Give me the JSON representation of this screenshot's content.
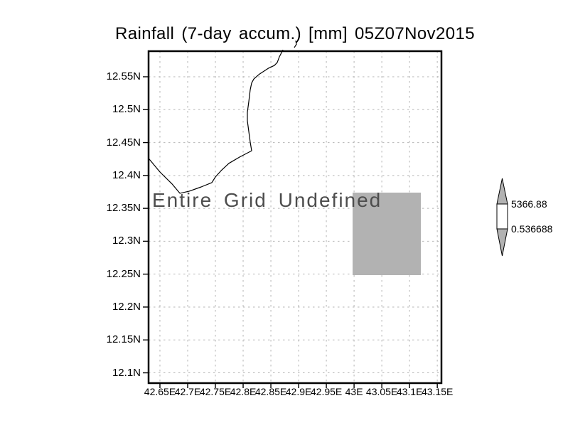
{
  "title": "Rainfall (7-day accum.) [mm] 05Z07Nov2015",
  "chart_data": {
    "type": "heatmap",
    "title": "Rainfall (7-day accum.) [mm] 05Z07Nov2015",
    "description_of_plot": "GrADS-style lat/lon map plot, entire grid undefined, one gray missing-data rectangle, coastline outline, vertical colorbar with pointed gray ends",
    "x_axis": {
      "labels": [
        "42.65E",
        "42.7E",
        "42.75E",
        "42.8E",
        "42.85E",
        "42.9E",
        "42.95E",
        "43E",
        "43.05E",
        "43.1E",
        "43.15E"
      ],
      "first_tick_frac": 0.0388,
      "tick_step_frac": 0.0947
    },
    "y_axis": {
      "labels": [
        "12.55N",
        "12.5N",
        "12.45N",
        "12.4N",
        "12.35N",
        "12.3N",
        "12.25N",
        "12.2N",
        "12.15N",
        "12.1N"
      ],
      "first_tick_frac": 0.0771,
      "tick_step_frac": 0.0991
    },
    "grid": "dotted",
    "annotation": {
      "text": "Entire Grid Undefined"
    },
    "colorbar": {
      "max_label": "5366.88",
      "min_label": "0.536688"
    },
    "undefined_region_frac": {
      "x0": 0.6966,
      "y0": 0.4261,
      "x1": 0.9296,
      "y1": 0.6745
    },
    "coastline_frac": [
      [
        0.459,
        -0.004
      ],
      [
        0.4466,
        0.017
      ],
      [
        0.4393,
        0.034
      ],
      [
        0.4296,
        0.043
      ],
      [
        0.4102,
        0.051
      ],
      [
        0.3786,
        0.069
      ],
      [
        0.3592,
        0.084
      ],
      [
        0.3519,
        0.096
      ],
      [
        0.3471,
        0.116
      ],
      [
        0.3422,
        0.152
      ],
      [
        0.3374,
        0.184
      ],
      [
        0.3374,
        0.21
      ],
      [
        0.3422,
        0.242
      ],
      [
        0.3471,
        0.274
      ],
      [
        0.3519,
        0.3
      ],
      [
        0.3107,
        0.319
      ],
      [
        0.2743,
        0.338
      ],
      [
        0.2476,
        0.36
      ],
      [
        0.2282,
        0.379
      ],
      [
        0.216,
        0.396
      ],
      [
        0.1796,
        0.409
      ],
      [
        0.1383,
        0.422
      ],
      [
        0.1068,
        0.428
      ],
      [
        0.0801,
        0.4
      ],
      [
        0.0388,
        0.364
      ],
      [
        0.0,
        0.323
      ]
    ],
    "coastline_fragment_frac": [
      [
        0.4976,
        -0.011
      ],
      [
        0.5049,
        -0.021
      ],
      [
        0.5025,
        -0.032
      ]
    ],
    "colors": {
      "frame": "#000000",
      "grid": "#b5b5b5",
      "undefined_fill": "#b2b2b2",
      "coastline": "#000000",
      "annotation_text": "#4d4d4d",
      "axis_text": "#000000",
      "colorbar_in_range": "#ffffff"
    }
  }
}
